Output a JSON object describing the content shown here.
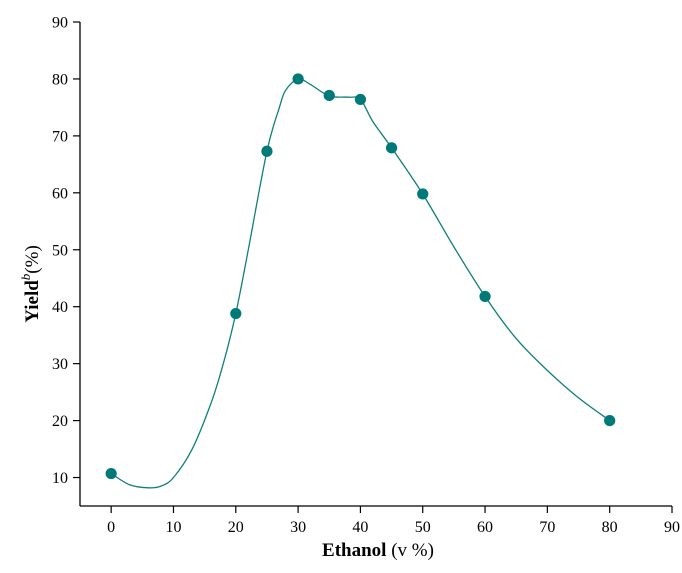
{
  "chart_data": {
    "type": "scatter",
    "xlabel": "Ethanol (v %)",
    "xlabel_parts": {
      "bold": "Ethanol",
      "normal": " (v %)"
    },
    "ylabel": "Yield^b(%)",
    "ylabel_parts": {
      "bold": "Yield",
      "sup": "b",
      "normal": "(%)"
    },
    "xlim": [
      -5,
      90
    ],
    "ylim": [
      5,
      90
    ],
    "xticks": [
      0,
      10,
      20,
      30,
      40,
      50,
      60,
      70,
      80,
      90
    ],
    "yticks": [
      10,
      20,
      30,
      40,
      50,
      60,
      70,
      80,
      90
    ],
    "grid": false,
    "colors": {
      "marker": "#007a78",
      "curve": "#0f7f7b",
      "axis": "#000000"
    },
    "series": [
      {
        "x": [
          0,
          20,
          25,
          30,
          35,
          40,
          45,
          50,
          60,
          80
        ],
        "y": [
          10.7,
          38.8,
          67.3,
          80.0,
          77.1,
          76.4,
          67.9,
          59.8,
          41.8,
          20.0
        ]
      }
    ],
    "fit_curve": {
      "x": [
        0,
        3,
        6,
        8,
        10,
        13,
        16,
        18,
        20,
        22,
        25,
        27,
        28,
        30,
        32,
        35,
        38,
        40,
        42,
        45,
        50,
        55,
        60,
        65,
        70,
        75,
        80
      ],
      "y": [
        10.7,
        8.7,
        8.2,
        8.5,
        10.0,
        15.0,
        23.0,
        30.0,
        38.8,
        50.0,
        67.3,
        75.0,
        78.0,
        80.0,
        79.0,
        77.0,
        76.8,
        76.4,
        72.5,
        67.9,
        59.8,
        50.5,
        41.8,
        34.4,
        28.8,
        24.0,
        20.0
      ]
    }
  }
}
